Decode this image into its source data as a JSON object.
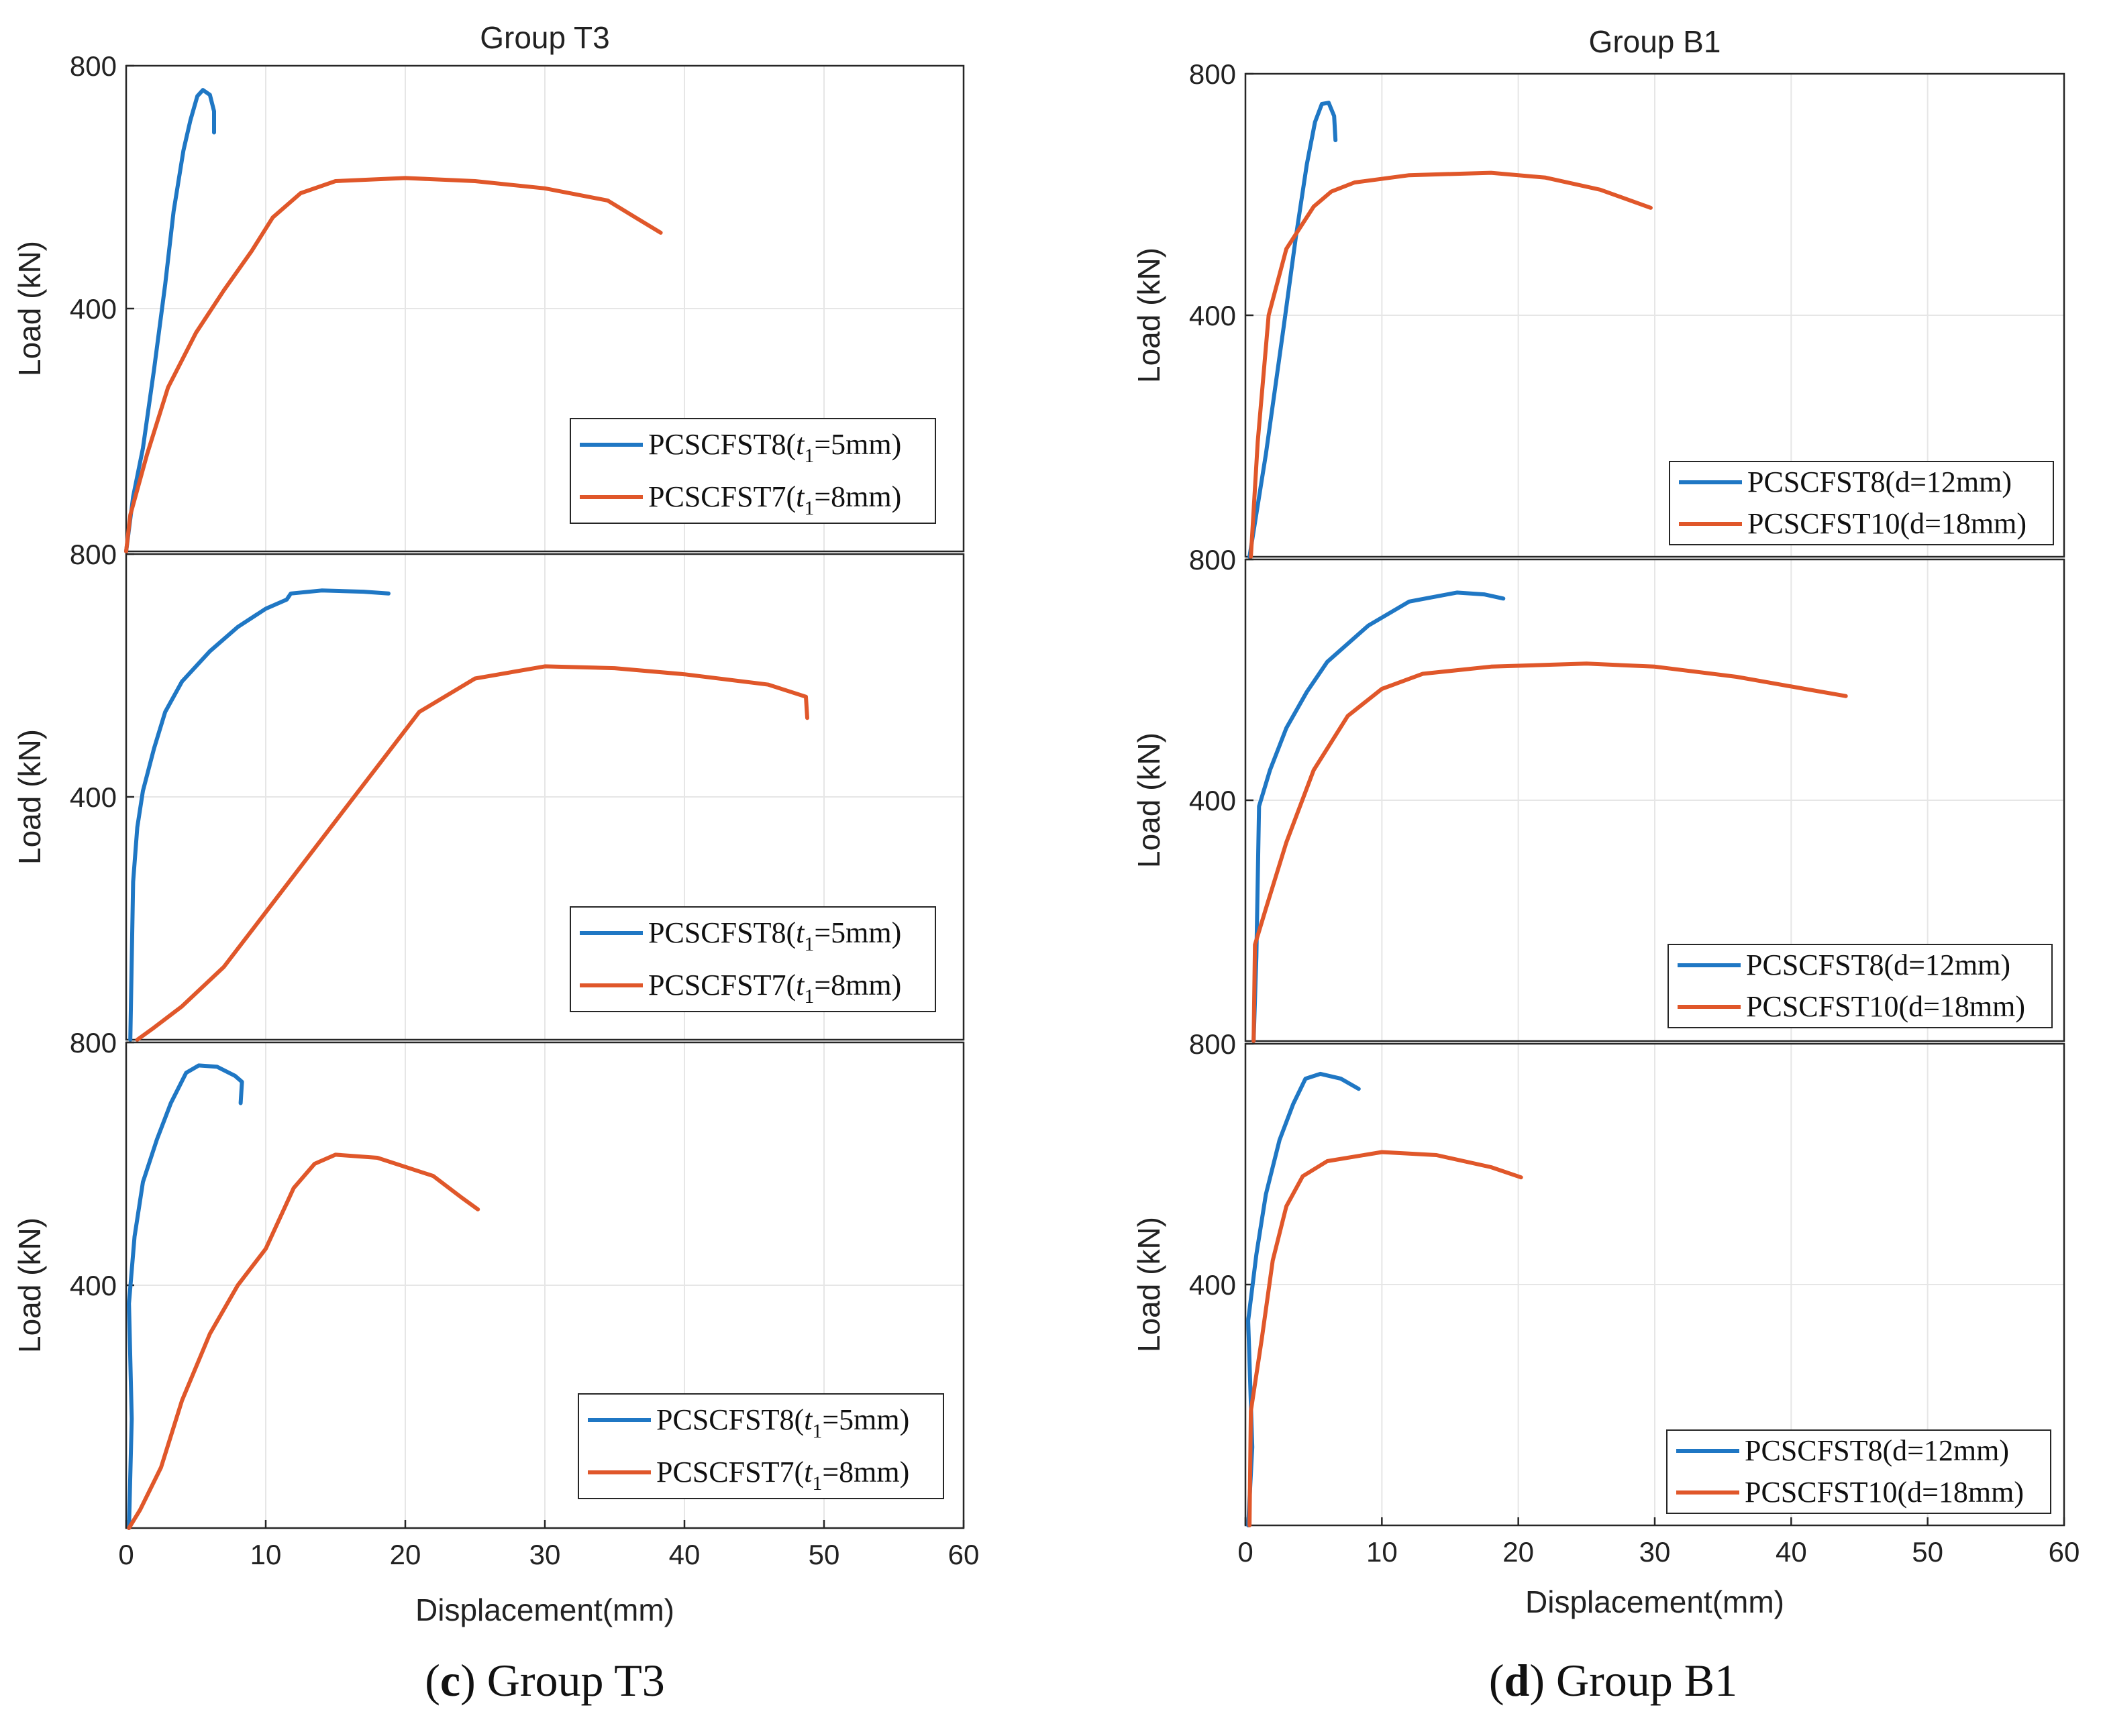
{
  "colors": {
    "series1": "#1f77c4",
    "series2": "#e0572a"
  },
  "figures": [
    {
      "id": "c",
      "title": "Group T3",
      "xlabel": "Displacement(mm)",
      "ylabel": "Load (kN)",
      "caption": {
        "open": "(",
        "letter": "c",
        "text": ") Group T3"
      },
      "x_ticks": [
        "0",
        "10",
        "20",
        "30",
        "40",
        "50",
        "60"
      ],
      "y_ticks": [
        "400",
        "800"
      ]
    },
    {
      "id": "d",
      "title": "Group B1",
      "xlabel": "Displacement(mm)",
      "ylabel": "Load (kN)",
      "caption": {
        "open": "(",
        "letter": "d",
        "text": ") Group B1"
      },
      "x_ticks": [
        "0",
        "10",
        "20",
        "30",
        "40",
        "50",
        "60"
      ],
      "y_ticks": [
        "400",
        "800"
      ]
    }
  ],
  "chart_data": [
    {
      "type": "line",
      "figure": "c",
      "panel": 1,
      "xlim": [
        0,
        60
      ],
      "ylim": [
        0,
        800
      ],
      "grid": true,
      "legend": "bottom-right",
      "series": [
        {
          "name": "PCSCFST8",
          "sub_var": "t",
          "sub": "1",
          "value": "=5mm)",
          "legend_text": "PCSCFST8(t1=5mm)",
          "points": [
            [
              0,
              0
            ],
            [
              0.5,
              90
            ],
            [
              1.2,
              170
            ],
            [
              2,
              300
            ],
            [
              2.8,
              440
            ],
            [
              3.4,
              560
            ],
            [
              4.1,
              660
            ],
            [
              4.6,
              710
            ],
            [
              5.1,
              750
            ],
            [
              5.5,
              760
            ],
            [
              6,
              752
            ],
            [
              6.3,
              725
            ],
            [
              6.3,
              690
            ]
          ]
        },
        {
          "name": "PCSCFST7",
          "sub_var": "t",
          "sub": "1",
          "value": "=8mm)",
          "legend_text": "PCSCFST7(t1=8mm)",
          "points": [
            [
              0,
              0
            ],
            [
              0.3,
              60
            ],
            [
              1.5,
              160
            ],
            [
              3,
              270
            ],
            [
              5,
              360
            ],
            [
              7,
              430
            ],
            [
              9,
              495
            ],
            [
              10.5,
              550
            ],
            [
              12.5,
              590
            ],
            [
              15,
              610
            ],
            [
              20,
              615
            ],
            [
              25,
              610
            ],
            [
              30,
              598
            ],
            [
              34.5,
              578
            ],
            [
              36.5,
              550
            ],
            [
              38.3,
              525
            ]
          ]
        }
      ]
    },
    {
      "type": "line",
      "figure": "c",
      "panel": 2,
      "xlim": [
        0,
        60
      ],
      "ylim": [
        0,
        800
      ],
      "grid": true,
      "legend": "bottom-right",
      "series": [
        {
          "name": "PCSCFST8",
          "sub_var": "t",
          "sub": "1",
          "value": "=5mm)",
          "legend_text": "PCSCFST8(t1=5mm)",
          "points": [
            [
              0.3,
              0
            ],
            [
              0.5,
              260
            ],
            [
              0.8,
              350
            ],
            [
              1.2,
              410
            ],
            [
              2,
              480
            ],
            [
              2.8,
              540
            ],
            [
              4,
              590
            ],
            [
              6,
              640
            ],
            [
              8,
              680
            ],
            [
              10,
              710
            ],
            [
              11.5,
              725
            ],
            [
              11.8,
              735
            ],
            [
              14,
              740
            ],
            [
              17,
              738
            ],
            [
              18.8,
              735
            ]
          ]
        },
        {
          "name": "PCSCFST7",
          "sub_var": "t",
          "sub": "1",
          "value": "=8mm)",
          "legend_text": "PCSCFST7(t1=8mm)",
          "points": [
            [
              0.8,
              0
            ],
            [
              2,
              20
            ],
            [
              4,
              55
            ],
            [
              7,
              120
            ],
            [
              10,
              210
            ],
            [
              14,
              330
            ],
            [
              18,
              450
            ],
            [
              21,
              540
            ],
            [
              25,
              595
            ],
            [
              30,
              615
            ],
            [
              35,
              612
            ],
            [
              40,
              602
            ],
            [
              46,
              585
            ],
            [
              48.7,
              565
            ],
            [
              48.8,
              530
            ]
          ]
        }
      ]
    },
    {
      "type": "line",
      "figure": "c",
      "panel": 3,
      "xlim": [
        0,
        60
      ],
      "ylim": [
        0,
        800
      ],
      "grid": true,
      "legend": "bottom-right",
      "series": [
        {
          "name": "PCSCFST8",
          "sub_var": "t",
          "sub": "1",
          "value": "=5mm)",
          "legend_text": "PCSCFST8(t1=5mm)",
          "points": [
            [
              0.2,
              0
            ],
            [
              0.4,
              180
            ],
            [
              0.2,
              370
            ],
            [
              0.6,
              480
            ],
            [
              1.2,
              570
            ],
            [
              2.2,
              640
            ],
            [
              3.2,
              700
            ],
            [
              4.3,
              750
            ],
            [
              5.2,
              762
            ],
            [
              6.5,
              760
            ],
            [
              7.8,
              745
            ],
            [
              8.3,
              735
            ],
            [
              8.2,
              700
            ]
          ]
        },
        {
          "name": "PCSCFST7",
          "sub_var": "t",
          "sub": "1",
          "value": "=8mm)",
          "legend_text": "PCSCFST7(t1=8mm)",
          "points": [
            [
              0.2,
              0
            ],
            [
              1,
              30
            ],
            [
              2.5,
              100
            ],
            [
              4,
              210
            ],
            [
              6,
              320
            ],
            [
              8,
              400
            ],
            [
              10,
              460
            ],
            [
              12,
              560
            ],
            [
              13.5,
              600
            ],
            [
              15,
              615
            ],
            [
              18,
              610
            ],
            [
              22,
              580
            ],
            [
              24,
              545
            ],
            [
              25.2,
              525
            ]
          ]
        }
      ]
    },
    {
      "type": "line",
      "figure": "d",
      "panel": 1,
      "xlim": [
        0,
        60
      ],
      "ylim": [
        0,
        800
      ],
      "grid": true,
      "legend": "bottom-right",
      "series": [
        {
          "name": "PCSCFST8",
          "sub_var": "",
          "sub": "",
          "value": "(d=12mm)",
          "legend_text": "PCSCFST8(d=12mm)",
          "points": [
            [
              0.3,
              0
            ],
            [
              1.5,
              170
            ],
            [
              2.8,
              380
            ],
            [
              3.7,
              530
            ],
            [
              4.5,
              650
            ],
            [
              5.1,
              720
            ],
            [
              5.6,
              750
            ],
            [
              6.1,
              752
            ],
            [
              6.5,
              730
            ],
            [
              6.6,
              690
            ]
          ]
        },
        {
          "name": "PCSCFST10",
          "sub_var": "",
          "sub": "",
          "value": "(d=18mm)",
          "legend_text": "PCSCFST10(d=18mm)",
          "points": [
            [
              0.4,
              0
            ],
            [
              0.9,
              190
            ],
            [
              1.7,
              400
            ],
            [
              3,
              510
            ],
            [
              5,
              580
            ],
            [
              6.3,
              605
            ],
            [
              8,
              620
            ],
            [
              12,
              632
            ],
            [
              18,
              636
            ],
            [
              22,
              628
            ],
            [
              26,
              608
            ],
            [
              29.7,
              578
            ]
          ]
        }
      ]
    },
    {
      "type": "line",
      "figure": "d",
      "panel": 2,
      "xlim": [
        0,
        60
      ],
      "ylim": [
        0,
        800
      ],
      "grid": true,
      "legend": "bottom-right",
      "series": [
        {
          "name": "PCSCFST8",
          "sub_var": "",
          "sub": "",
          "value": "(d=12mm)",
          "legend_text": "PCSCFST8(d=12mm)",
          "points": [
            [
              0.6,
              0
            ],
            [
              0.8,
              140
            ],
            [
              1,
              390
            ],
            [
              1.8,
              450
            ],
            [
              3,
              520
            ],
            [
              4.5,
              580
            ],
            [
              6,
              630
            ],
            [
              9,
              690
            ],
            [
              12,
              730
            ],
            [
              15.5,
              745
            ],
            [
              17.5,
              742
            ],
            [
              18.9,
              735
            ]
          ]
        },
        {
          "name": "PCSCFST10",
          "sub_var": "",
          "sub": "",
          "value": "(d=18mm)",
          "legend_text": "PCSCFST10(d=18mm)",
          "points": [
            [
              0.6,
              0
            ],
            [
              0.7,
              160
            ],
            [
              1.5,
              220
            ],
            [
              3,
              330
            ],
            [
              5,
              450
            ],
            [
              7.5,
              540
            ],
            [
              10,
              585
            ],
            [
              13,
              610
            ],
            [
              18,
              622
            ],
            [
              25,
              627
            ],
            [
              30,
              622
            ],
            [
              36,
              605
            ],
            [
              41,
              585
            ],
            [
              44,
              573
            ]
          ]
        }
      ]
    },
    {
      "type": "line",
      "figure": "d",
      "panel": 3,
      "xlim": [
        0,
        60
      ],
      "ylim": [
        0,
        800
      ],
      "grid": true,
      "legend": "bottom-right",
      "series": [
        {
          "name": "PCSCFST8",
          "sub_var": "",
          "sub": "",
          "value": "(d=12mm)",
          "legend_text": "PCSCFST8(d=12mm)",
          "points": [
            [
              0.2,
              0
            ],
            [
              0.5,
              130
            ],
            [
              0.2,
              340
            ],
            [
              0.8,
              450
            ],
            [
              1.5,
              550
            ],
            [
              2.5,
              640
            ],
            [
              3.5,
              700
            ],
            [
              4.4,
              742
            ],
            [
              5.5,
              750
            ],
            [
              7,
              742
            ],
            [
              8.3,
              725
            ]
          ]
        },
        {
          "name": "PCSCFST10",
          "sub_var": "",
          "sub": "",
          "value": "(d=18mm)",
          "legend_text": "PCSCFST10(d=18mm)",
          "points": [
            [
              0.3,
              0
            ],
            [
              0.4,
              190
            ],
            [
              1.2,
              310
            ],
            [
              2,
              440
            ],
            [
              3,
              530
            ],
            [
              4.2,
              580
            ],
            [
              6,
              605
            ],
            [
              10,
              620
            ],
            [
              14,
              615
            ],
            [
              18,
              595
            ],
            [
              20.2,
              578
            ]
          ]
        }
      ]
    }
  ]
}
